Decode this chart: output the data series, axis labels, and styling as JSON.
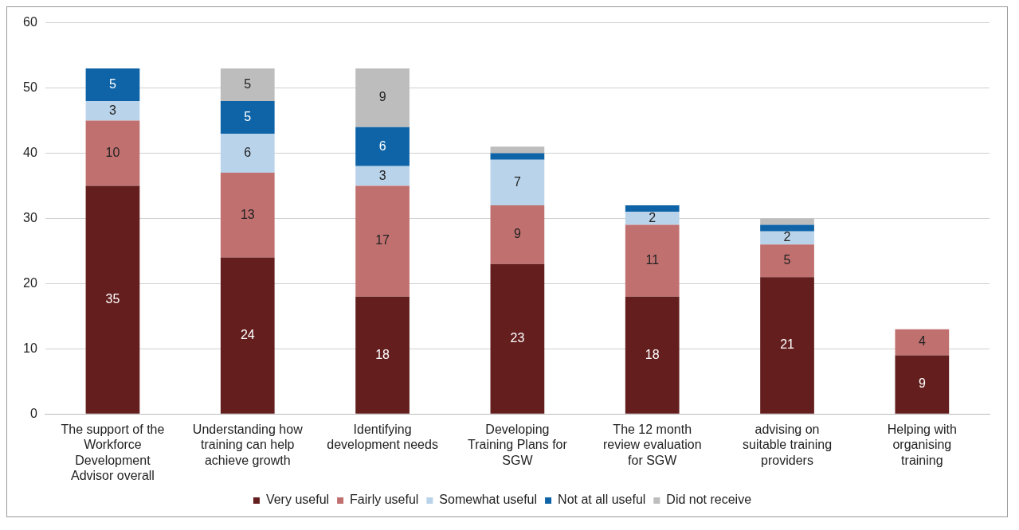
{
  "chart_data": {
    "type": "bar",
    "stacked": true,
    "categories": [
      "The support of the Workforce Development Advisor overall",
      "Understanding how training can help achieve growth",
      "Identifying development needs",
      "Developing Training Plans for SGW",
      "The 12 month review evaluation for SGW",
      "advising on suitable training providers",
      "Helping with organising training"
    ],
    "series": [
      {
        "name": "Very useful",
        "color": "#641e1e",
        "values": [
          35,
          24,
          18,
          23,
          18,
          21,
          9
        ],
        "value_labels": [
          "35",
          "24",
          "18",
          "23",
          "18",
          "21",
          "9"
        ]
      },
      {
        "name": "Fairly useful",
        "color": "#c0706f",
        "values": [
          10,
          13,
          17,
          9,
          11,
          5,
          4
        ],
        "value_labels": [
          "10",
          "13",
          "17",
          "9",
          "11",
          "5",
          "4"
        ]
      },
      {
        "name": "Somewhat useful",
        "color": "#b9d3ea",
        "values": [
          3,
          6,
          3,
          7,
          2,
          2,
          0
        ],
        "value_labels": [
          "3",
          "6",
          "3",
          "7",
          "2",
          "2",
          null
        ]
      },
      {
        "name": "Not at all useful",
        "color": "#0f64a8",
        "values": [
          5,
          5,
          6,
          1,
          1,
          1,
          0
        ],
        "value_labels": [
          "5",
          "5",
          "6",
          null,
          null,
          null,
          null
        ]
      },
      {
        "name": "Did not receive",
        "color": "#bdbdbd",
        "values": [
          0,
          5,
          9,
          1,
          0,
          1,
          0
        ],
        "value_labels": [
          null,
          "5",
          "9",
          null,
          null,
          null,
          null
        ]
      }
    ],
    "ylim": [
      0,
      60
    ],
    "yticks": [
      0,
      10,
      20,
      30,
      40,
      50,
      60
    ],
    "grid": "y",
    "legend": "bottom"
  }
}
